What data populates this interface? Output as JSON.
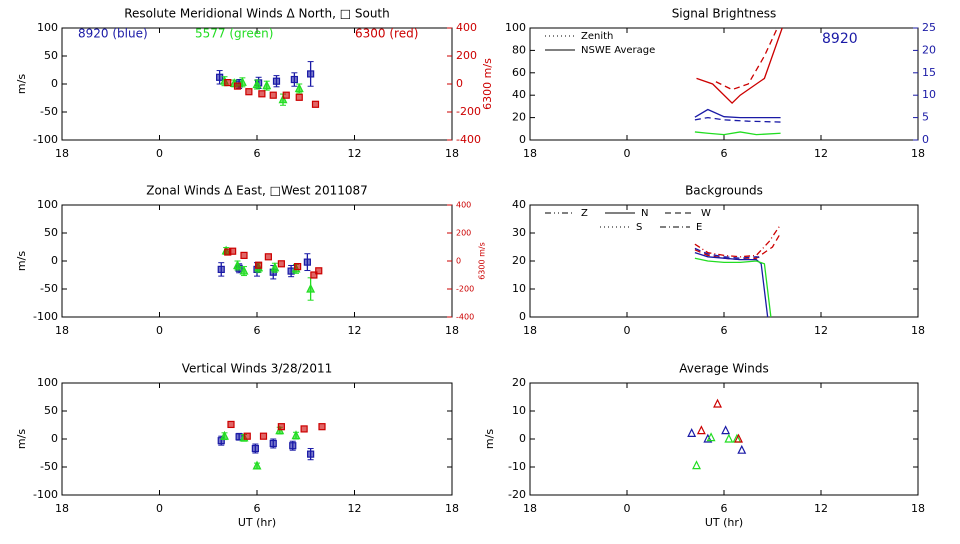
{
  "chart_data": [
    {
      "type": "scatter",
      "title": "Resolute Meridional Winds Δ North, □ South",
      "ylabel": "m/s",
      "y2label": "6300 m/s",
      "xlim": [
        -6,
        18
      ],
      "xticks": [
        {
          "value": -6,
          "label": "18"
        },
        0,
        6,
        12,
        18
      ],
      "ylim": [
        -100,
        100
      ],
      "yticks": [
        -100,
        -50,
        0,
        50,
        100
      ],
      "y2lim": [
        -400,
        400
      ],
      "y2ticks": [
        -400,
        -200,
        0,
        200,
        400
      ],
      "y2color": "#cc0000",
      "series": [
        {
          "name": "8920 (blue)",
          "color": "#1a1aa6",
          "marker": "square",
          "x": [
            3.7,
            4.9,
            6.1,
            7.2,
            8.3,
            9.3
          ],
          "values": [
            12,
            0,
            2,
            5,
            8,
            18
          ],
          "errors": [
            12,
            8,
            10,
            10,
            12,
            22
          ]
        },
        {
          "name": "5577 (green)",
          "color": "#22dd22",
          "marker": "triangle",
          "x": [
            4.0,
            4.6,
            5.1,
            6.0,
            6.6,
            7.6,
            8.6
          ],
          "values": [
            5,
            1,
            3,
            -1,
            -3,
            -28,
            -8
          ],
          "errors": [
            8,
            6,
            8,
            8,
            8,
            10,
            8
          ]
        },
        {
          "name": "6300 (red)",
          "color": "#cc0000",
          "marker": "square",
          "axis": "y2",
          "x": [
            4.2,
            4.8,
            5.5,
            6.3,
            7.0,
            7.8,
            8.6,
            9.6
          ],
          "values": [
            10,
            -15,
            -55,
            -70,
            -80,
            -80,
            -95,
            -145
          ]
        }
      ]
    },
    {
      "type": "line",
      "title": "Signal Brightness",
      "legend_items": [
        {
          "label": "Zenith",
          "dash": "dot"
        },
        {
          "label": "NSWE Average",
          "dash": "solid"
        }
      ],
      "annotation": "8920",
      "annotation_color": "#1a1aa6",
      "xlim": [
        -6,
        18
      ],
      "xticks": [
        {
          "value": -6,
          "label": "18"
        },
        0,
        6,
        12,
        18
      ],
      "ylim": [
        0,
        100
      ],
      "yticks": [
        0,
        20,
        40,
        60,
        80,
        100
      ],
      "y2lim": [
        0,
        25
      ],
      "y2ticks": [
        0,
        5,
        10,
        15,
        20,
        25
      ],
      "y2color": "#1a1aa6",
      "series": [
        {
          "color": "#cc0000",
          "dash": "solid",
          "x": [
            4.3,
            5.3,
            6.5,
            7.0,
            8.5,
            9.6
          ],
          "values": [
            55,
            50,
            33,
            40,
            55,
            100
          ]
        },
        {
          "color": "#cc0000",
          "dash": "dash",
          "x": [
            5.5,
            6.5,
            7.5,
            8.5,
            9.3
          ],
          "values": [
            52,
            45,
            50,
            75,
            100
          ]
        },
        {
          "color": "#1a1aa6",
          "dash": "solid",
          "axis": "y2",
          "x": [
            4.2,
            5.0,
            6.0,
            7.0,
            8.0,
            9.5
          ],
          "values": [
            5.1,
            6.8,
            5.2,
            5,
            5,
            5
          ]
        },
        {
          "color": "#1a1aa6",
          "dash": "dash",
          "axis": "y2",
          "x": [
            4.2,
            5.0,
            6.0,
            7.5,
            9.5
          ],
          "values": [
            4.5,
            5,
            4.5,
            4.2,
            4
          ]
        },
        {
          "color": "#22dd22",
          "dash": "solid",
          "axis": "y2",
          "x": [
            4.2,
            5.0,
            6.0,
            7.0,
            8.0,
            9.5
          ],
          "values": [
            1.8,
            1.5,
            1.2,
            1.8,
            1.2,
            1.5
          ]
        }
      ]
    },
    {
      "type": "scatter",
      "title": "Zonal Winds Δ East, □West 2011087",
      "ylabel": "m/s",
      "y2label": "6300 m/s",
      "xlim": [
        -6,
        18
      ],
      "xticks": [
        {
          "value": -6,
          "label": "18"
        },
        0,
        6,
        12,
        18
      ],
      "ylim": [
        -100,
        100
      ],
      "yticks": [
        -100,
        -50,
        0,
        50,
        100
      ],
      "y2lim": [
        -400,
        400
      ],
      "y2ticks": [
        -400,
        -200,
        0,
        200,
        400
      ],
      "y2color": "#cc0000",
      "series": [
        {
          "color": "#1a1aa6",
          "marker": "square",
          "x": [
            3.8,
            4.9,
            6.0,
            7.0,
            8.1,
            9.1
          ],
          "values": [
            -15,
            -13,
            -15,
            -20,
            -18,
            -2
          ],
          "errors": [
            12,
            8,
            12,
            12,
            10,
            15
          ]
        },
        {
          "color": "#22dd22",
          "marker": "triangle",
          "x": [
            4.1,
            4.8,
            5.2,
            6.1,
            7.1,
            8.4,
            9.3
          ],
          "values": [
            18,
            -8,
            -18,
            -12,
            -12,
            -14,
            -50
          ],
          "errors": [
            6,
            8,
            8,
            8,
            8,
            8,
            20
          ]
        },
        {
          "color": "#cc0000",
          "marker": "square",
          "axis": "y2",
          "x": [
            4.2,
            4.5,
            5.2,
            6.1,
            6.7,
            7.5,
            8.5,
            9.5,
            9.8
          ],
          "values": [
            64,
            70,
            40,
            -30,
            30,
            -20,
            -40,
            -100,
            -70
          ]
        }
      ]
    },
    {
      "type": "line",
      "title": "Backgrounds",
      "legend_items": [
        {
          "label": "Z",
          "dash": "dashdotdot"
        },
        {
          "label": "N",
          "dash": "solid"
        },
        {
          "label": "W",
          "dash": "dash"
        },
        {
          "label": "S",
          "dash": "dot"
        },
        {
          "label": "E",
          "dash": "dashdot"
        }
      ],
      "xlim": [
        -6,
        18
      ],
      "xticks": [
        {
          "value": -6,
          "label": "18"
        },
        0,
        6,
        12,
        18
      ],
      "ylim": [
        0,
        40
      ],
      "yticks": [
        0,
        10,
        20,
        30,
        40
      ],
      "series": [
        {
          "color": "#cc0000",
          "dash": "dashdot",
          "x": [
            4.2,
            5,
            6,
            7,
            8,
            8.8,
            9.5
          ],
          "values": [
            26,
            23,
            22,
            21.5,
            22,
            27,
            33
          ]
        },
        {
          "color": "#cc0000",
          "dash": "dash",
          "x": [
            4.2,
            5,
            6,
            7,
            8,
            9,
            9.5
          ],
          "values": [
            24,
            22,
            21,
            20.5,
            21,
            25,
            30
          ]
        },
        {
          "color": "#1a1aa6",
          "dash": "solid",
          "x": [
            4.2,
            5,
            6,
            7,
            8,
            8.3,
            8.7
          ],
          "values": [
            23,
            21.5,
            21,
            20.5,
            20.5,
            19,
            0
          ]
        },
        {
          "color": "#1a1aa6",
          "dash": "dash",
          "x": [
            4.2,
            5,
            6,
            7,
            8,
            8.4
          ],
          "values": [
            24.5,
            22.5,
            21.5,
            21,
            21.5,
            21
          ]
        },
        {
          "color": "#22dd22",
          "dash": "solid",
          "x": [
            4.2,
            5,
            6,
            7,
            8,
            8.5,
            8.9
          ],
          "values": [
            21,
            20,
            19.5,
            19.5,
            20,
            19,
            0
          ]
        }
      ]
    },
    {
      "type": "scatter",
      "title": "Vertical Winds 3/28/2011",
      "ylabel": "m/s",
      "xlabel": "UT (hr)",
      "xlim": [
        -6,
        18
      ],
      "xticks": [
        {
          "value": -6,
          "label": "18"
        },
        0,
        6,
        12,
        18
      ],
      "ylim": [
        -100,
        100
      ],
      "yticks": [
        -100,
        -50,
        0,
        50,
        100
      ],
      "series": [
        {
          "color": "#1a1aa6",
          "marker": "square",
          "x": [
            3.8,
            4.9,
            5.9,
            7.0,
            8.2,
            9.3
          ],
          "values": [
            -3,
            4,
            -17,
            -8,
            -12,
            -27
          ],
          "errors": [
            8,
            6,
            8,
            8,
            8,
            10
          ]
        },
        {
          "color": "#22dd22",
          "marker": "triangle",
          "x": [
            4.0,
            5.2,
            6.0,
            7.4,
            8.4
          ],
          "values": [
            5,
            2,
            -48,
            15,
            6
          ],
          "errors": [
            6,
            6,
            5,
            6,
            6
          ]
        },
        {
          "color": "#cc0000",
          "marker": "square",
          "x": [
            4.4,
            5.4,
            6.4,
            7.5,
            8.9,
            10.0
          ],
          "values": [
            26,
            5,
            5,
            22,
            18,
            22
          ]
        }
      ]
    },
    {
      "type": "scatter",
      "title": "Average Winds",
      "ylabel": "m/s",
      "xlabel": "UT (hr)",
      "xlim": [
        -6,
        18
      ],
      "xticks": [
        {
          "value": -6,
          "label": "18"
        },
        0,
        6,
        12,
        18
      ],
      "ylim": [
        -20,
        20
      ],
      "yticks": [
        -20,
        -10,
        0,
        10,
        20
      ],
      "series": [
        {
          "color": "#1a1aa6",
          "marker": "triangle",
          "hollow": true,
          "x": [
            4.0,
            5.0,
            6.1,
            7.1
          ],
          "values": [
            2,
            0,
            3,
            -4
          ]
        },
        {
          "color": "#22dd22",
          "marker": "triangle",
          "hollow": true,
          "x": [
            4.3,
            5.2,
            6.3,
            6.8
          ],
          "values": [
            -9.5,
            0.5,
            0,
            0
          ]
        },
        {
          "color": "#cc0000",
          "marker": "triangle",
          "hollow": true,
          "x": [
            4.6,
            5.6,
            6.9
          ],
          "values": [
            3,
            12.5,
            0
          ]
        }
      ]
    }
  ]
}
